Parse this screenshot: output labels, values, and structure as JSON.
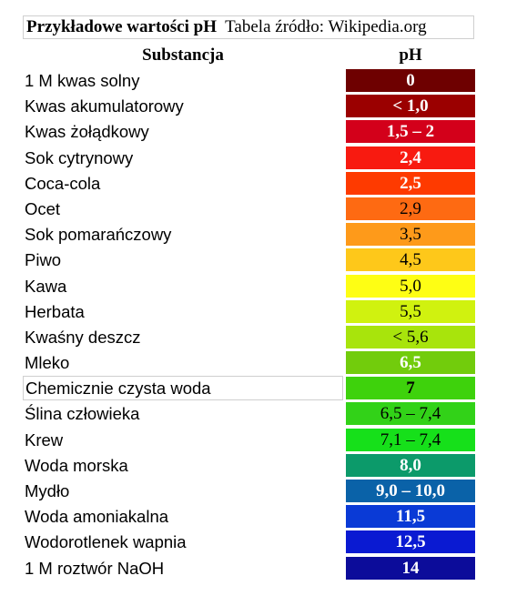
{
  "header": {
    "title_bold": "Przykładowe wartości pH",
    "title_rest": "Tabela źródło: Wikipedia.org",
    "col_substance": "Substancja",
    "col_ph": "pH"
  },
  "rows": [
    {
      "name": "1 M kwas solny",
      "ph": "0",
      "color": "#6e0000",
      "text": "light",
      "bold": true
    },
    {
      "name": "Kwas akumulatorowy",
      "ph": "< 1,0",
      "color": "#9b0000",
      "text": "light",
      "bold": true
    },
    {
      "name": "Kwas żołądkowy",
      "ph": "1,5 – 2",
      "color": "#d3001a",
      "text": "light",
      "bold": true
    },
    {
      "name": "Sok cytrynowy",
      "ph": "2,4",
      "color": "#f81a10",
      "text": "light",
      "bold": true
    },
    {
      "name": "Coca-cola",
      "ph": "2,5",
      "color": "#fe3a00",
      "text": "light",
      "bold": true
    },
    {
      "name": "Ocet",
      "ph": "2,9",
      "color": "#fe6a12",
      "text": "dark",
      "bold": false
    },
    {
      "name": "Sok pomarańczowy",
      "ph": "3,5",
      "color": "#fe9a1a",
      "text": "dark",
      "bold": false
    },
    {
      "name": "Piwo",
      "ph": "4,5",
      "color": "#fec81a",
      "text": "dark",
      "bold": false
    },
    {
      "name": "Kawa",
      "ph": "5,0",
      "color": "#fefe14",
      "text": "dark",
      "bold": false
    },
    {
      "name": "Herbata",
      "ph": "5,5",
      "color": "#d0f20f",
      "text": "dark",
      "bold": false
    },
    {
      "name": "Kwaśny deszcz",
      "ph": "< 5,6",
      "color": "#a8e40c",
      "text": "dark",
      "bold": false
    },
    {
      "name": "Mleko",
      "ph": "6,5",
      "color": "#72cc0c",
      "text": "light",
      "bold": true
    },
    {
      "name": "Chemicznie czysta woda",
      "ph": "7",
      "color": "#3ed20c",
      "text": "dark",
      "bold": true,
      "boxed": true
    },
    {
      "name": "Ślina człowieka",
      "ph": "6,5 – 7,4",
      "color": "#32d218",
      "text": "dark",
      "bold": false
    },
    {
      "name": "Krew",
      "ph": "7,1 – 7,4",
      "color": "#16e01a",
      "text": "dark",
      "bold": false
    },
    {
      "name": "Woda morska",
      "ph": "8,0",
      "color": "#0c9a6a",
      "text": "light",
      "bold": true
    },
    {
      "name": "Mydło",
      "ph": "9,0 – 10,0",
      "color": "#0a62a8",
      "text": "light",
      "bold": true
    },
    {
      "name": "Woda amoniakalna",
      "ph": "11,5",
      "color": "#0a3ad6",
      "text": "light",
      "bold": true
    },
    {
      "name": "Wodorotlenek wapnia",
      "ph": "12,5",
      "color": "#0a1ad2",
      "text": "light",
      "bold": true
    },
    {
      "name": "1 M roztwór NaOH",
      "ph": "14",
      "color": "#0c0c9a",
      "text": "light",
      "bold": true
    }
  ]
}
